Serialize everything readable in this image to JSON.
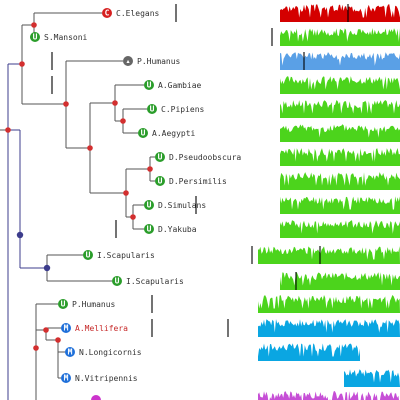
{
  "colors": {
    "branch": "#555555",
    "basal_branch": "#3c3c8c",
    "text": "#333333",
    "highlight_text": "#c62828",
    "node_red": "#d32f2f",
    "node_navy": "#3c3c8c",
    "badge_green": "#2a9d2a",
    "badge_blue": "#1e6fd9",
    "badge_gray": "#666666",
    "badge_red": "#d62020",
    "badge_magenta": "#cc33cc",
    "track_red": "#d40000",
    "track_green": "#4cd41c",
    "track_sky": "#5aa0e6",
    "track_cyan": "#0aa6e2",
    "track_magenta": "#c64fd6"
  },
  "taxa": [
    {
      "label": "C.Elegans",
      "badge": "C",
      "badge_color": "badge_red",
      "track_color": "track_red",
      "track": [
        0.7,
        1.0
      ],
      "marks": [
        0.44,
        0.87
      ],
      "highlight": false
    },
    {
      "label": "S.Mansoni",
      "badge": "U",
      "badge_color": "badge_green",
      "track_color": "track_green",
      "track": [
        0.7,
        1.0
      ],
      "marks": [
        0.68
      ],
      "highlight": false
    },
    {
      "label": "P.Humanus",
      "badge": "▴",
      "badge_color": "badge_gray",
      "track_color": "track_sky",
      "track": [
        0.7,
        1.0
      ],
      "marks": [
        0.13,
        0.76
      ],
      "highlight": false
    },
    {
      "label": "A.Gambiae",
      "badge": "U",
      "badge_color": "badge_green",
      "track_color": "track_green",
      "track": [
        0.7,
        1.0
      ],
      "marks": [
        0.13
      ],
      "highlight": false
    },
    {
      "label": "C.Pipiens",
      "badge": "U",
      "badge_color": "badge_green",
      "track_color": "track_green",
      "track": [
        0.7,
        1.0
      ],
      "marks": [],
      "highlight": false
    },
    {
      "label": "A.Aegypti",
      "badge": "U",
      "badge_color": "badge_green",
      "track_color": "track_green",
      "track": [
        0.7,
        1.0
      ],
      "marks": [],
      "highlight": false
    },
    {
      "label": "D.Pseudoobscura",
      "badge": "U",
      "badge_color": "badge_green",
      "track_color": "track_green",
      "track": [
        0.7,
        1.0
      ],
      "marks": [],
      "highlight": false
    },
    {
      "label": "D.Persimilis",
      "badge": "U",
      "badge_color": "badge_green",
      "track_color": "track_green",
      "track": [
        0.7,
        1.0
      ],
      "marks": [],
      "highlight": false
    },
    {
      "label": "D.Simulans",
      "badge": "U",
      "badge_color": "badge_green",
      "track_color": "track_green",
      "track": [
        0.7,
        1.0
      ],
      "marks": [
        0.49
      ],
      "highlight": false
    },
    {
      "label": "D.Yakuba",
      "badge": "U",
      "badge_color": "badge_green",
      "track_color": "track_green",
      "track": [
        0.7,
        1.0
      ],
      "marks": [
        0.29
      ],
      "highlight": false
    },
    {
      "label": "I.Scapularis",
      "badge": "U",
      "badge_color": "badge_green",
      "track_color": "track_green",
      "track": [
        0.645,
        1.0
      ],
      "marks": [
        0.63,
        0.8
      ],
      "highlight": false
    },
    {
      "label": "I.Scapularis",
      "badge": "U",
      "badge_color": "badge_green",
      "track_color": "track_green",
      "track": [
        0.7,
        1.0
      ],
      "marks": [
        0.74
      ],
      "highlight": false
    },
    {
      "label": "P.Humanus",
      "badge": "U",
      "badge_color": "badge_green",
      "track_color": "track_green",
      "track": [
        0.645,
        1.0
      ],
      "marks": [
        0.38
      ],
      "highlight": false
    },
    {
      "label": "A.Mellifera",
      "badge": "M",
      "badge_color": "badge_blue",
      "track_color": "track_cyan",
      "track": [
        0.645,
        1.0
      ],
      "marks": [
        0.38,
        0.57
      ],
      "highlight": true
    },
    {
      "label": "N.Longicornis",
      "badge": "M",
      "badge_color": "badge_blue",
      "track_color": "track_cyan",
      "track": [
        0.645,
        0.9
      ],
      "marks": [],
      "highlight": false
    },
    {
      "label": "N.Vitripennis",
      "badge": "M",
      "badge_color": "badge_blue",
      "track_color": "track_cyan",
      "track": [
        0.86,
        1.0
      ],
      "marks": [],
      "highlight": false
    },
    {
      "label": "",
      "badge": "",
      "badge_color": "badge_magenta",
      "track_color": "track_magenta",
      "track": [
        0.645,
        1.0
      ],
      "marks": [],
      "highlight": false
    }
  ],
  "internal_nodes": [
    {
      "color": "node_red"
    },
    {
      "color": "node_red"
    },
    {
      "color": "node_red"
    },
    {
      "color": "node_red"
    },
    {
      "color": "node_red"
    },
    {
      "color": "node_red"
    },
    {
      "color": "node_red"
    },
    {
      "color": "node_red"
    },
    {
      "color": "node_red"
    },
    {
      "color": "node_red"
    },
    {
      "color": "node_navy"
    },
    {
      "color": "node_navy"
    },
    {
      "color": "node_red"
    },
    {
      "color": "node_red"
    },
    {
      "color": "node_red"
    }
  ]
}
